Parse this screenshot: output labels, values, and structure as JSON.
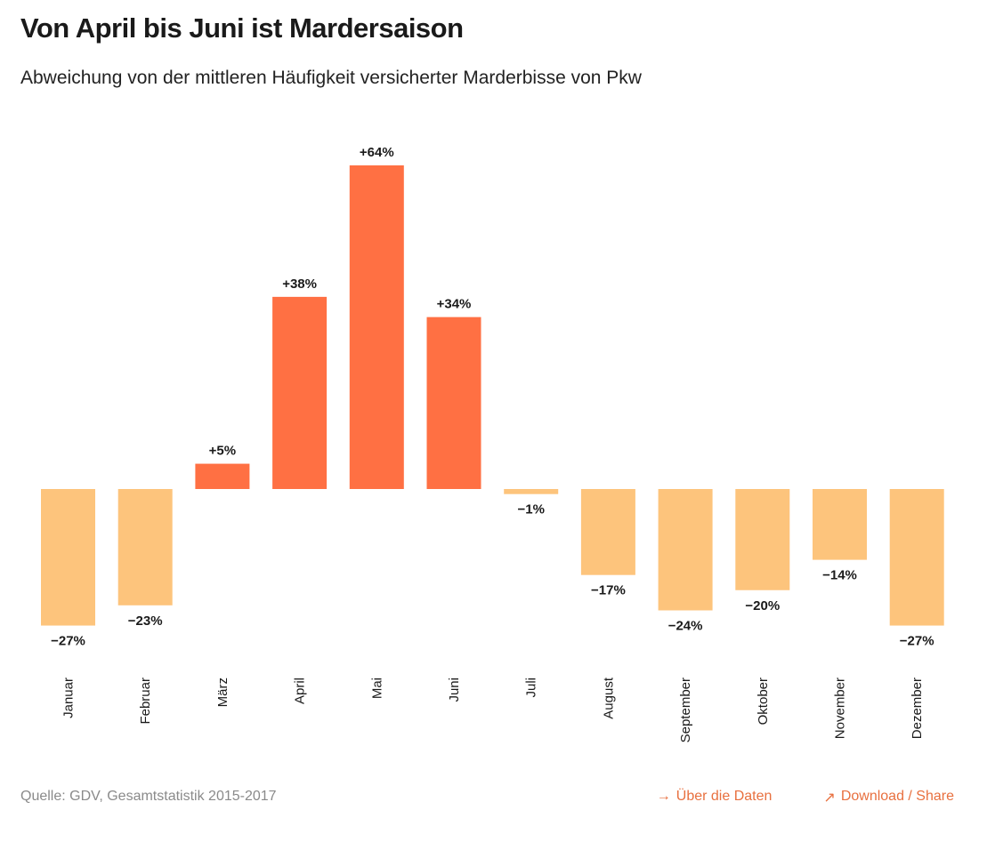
{
  "header": {
    "title": "Von April bis Juni ist Mardersaison",
    "subtitle": "Abweichung von der mittleren Häufigkeit versicherter Marderbisse von Pkw"
  },
  "colors": {
    "positive": "#ff7043",
    "negative": "#fdc47c",
    "label": "#1a1a1a",
    "link": "#e8703f",
    "source": "#8a8a8a"
  },
  "chart_data": {
    "type": "bar",
    "title": "Von April bis Juni ist Mardersaison",
    "subtitle": "Abweichung von der mittleren Häufigkeit versicherter Marderbisse von Pkw",
    "xlabel": "",
    "ylabel": "",
    "ylim": [
      -27,
      64
    ],
    "grid": false,
    "categories": [
      "Januar",
      "Februar",
      "März",
      "April",
      "Mai",
      "Juni",
      "Juli",
      "August",
      "September",
      "Oktober",
      "November",
      "Dezember"
    ],
    "values": [
      -27,
      -23,
      5,
      38,
      64,
      34,
      -1,
      -17,
      -24,
      -20,
      -14,
      -27
    ],
    "labels": [
      "−27%",
      "−23%",
      "+5%",
      "+38%",
      "+64%",
      "+34%",
      "−1%",
      "−17%",
      "−24%",
      "−20%",
      "−14%",
      "−27%"
    ]
  },
  "footer": {
    "source": "Quelle: GDV, Gesamtstatistik 2015-2017",
    "links": [
      {
        "icon": "arrow-right-icon",
        "glyph": "→",
        "label": "Über die Daten"
      },
      {
        "icon": "arrow-up-right-icon",
        "glyph": "↗",
        "label": "Download / Share"
      }
    ]
  }
}
